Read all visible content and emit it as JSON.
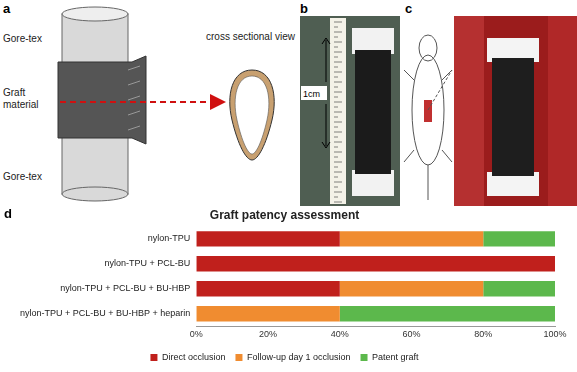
{
  "panel_labels": [
    "a",
    "b",
    "c",
    "d"
  ],
  "diagram": {
    "labels": [
      "Gore-tex",
      "Graft material",
      "Gore-tex"
    ],
    "cross_section_label": "cross sectional view"
  },
  "photo": {
    "scale_label": "1cm"
  },
  "chart_data": {
    "type": "bar",
    "title": "Graft patency assessment",
    "orientation": "horizontal",
    "stacked": true,
    "grid": false,
    "legend": "bottom",
    "categories": [
      "nylon-TPU",
      "nylon-TPU + PCL-BU",
      "nylon-TPU + PCL-BU + BU-HBP",
      "nylon-TPU + PCL-BU + BU-HBP + heparin"
    ],
    "series": [
      {
        "name": "Direct occlusion",
        "color": "#c0201c",
        "values": [
          40,
          100,
          40,
          0
        ]
      },
      {
        "name": "Follow-up day 1 occlusion",
        "color": "#f08c30",
        "values": [
          40,
          0,
          40,
          40
        ]
      },
      {
        "name": "Patent graft",
        "color": "#5cb84c",
        "values": [
          20,
          0,
          20,
          60
        ]
      }
    ],
    "xlim": [
      0,
      100
    ],
    "xticks": [
      {
        "value": 0,
        "label": "0%"
      },
      {
        "value": 20,
        "label": "20%"
      },
      {
        "value": 40,
        "label": "40%"
      },
      {
        "value": 60,
        "label": "60%"
      },
      {
        "value": 80,
        "label": "80%"
      },
      {
        "value": 100,
        "label": "100%"
      }
    ]
  }
}
